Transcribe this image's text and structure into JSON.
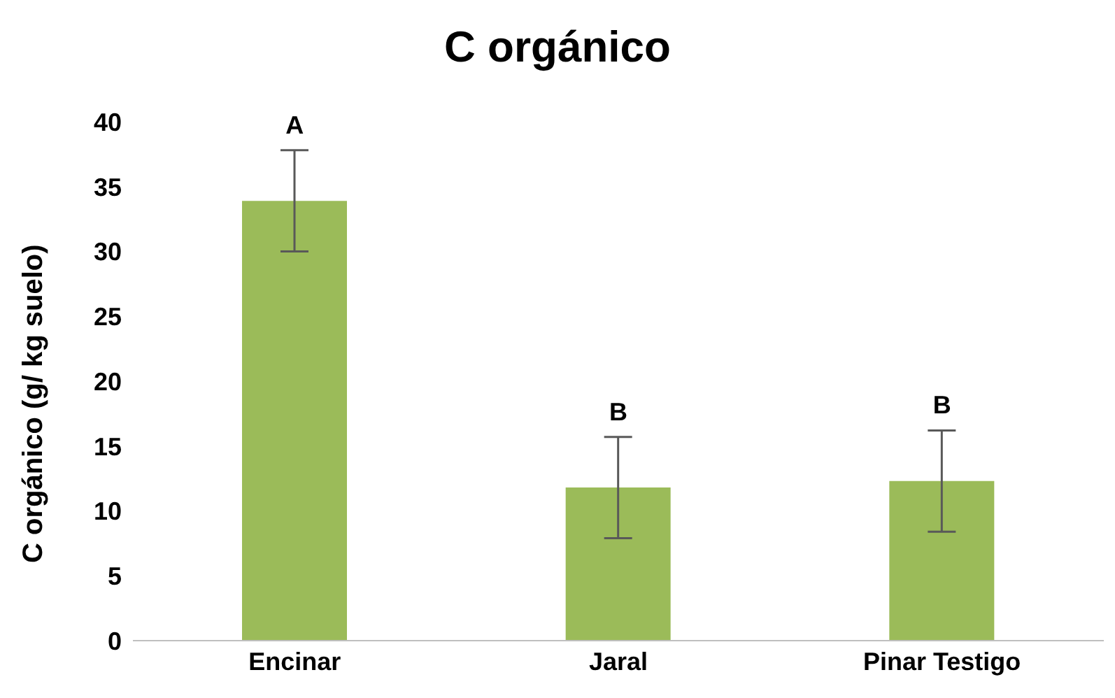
{
  "chart_data": {
    "type": "bar",
    "title": "C orgánico",
    "ylabel": "C orgánico (g/ kg suelo)",
    "categories": [
      "Encinar",
      "Jaral",
      "Pinar Testigo"
    ],
    "values": [
      33.9,
      11.8,
      12.3
    ],
    "errors": [
      3.9,
      3.9,
      3.9
    ],
    "color": "#9bbb59",
    "ylim": [
      0,
      40
    ],
    "yticks": [
      0,
      5,
      10,
      15,
      20,
      25,
      30,
      35,
      40
    ],
    "grid": false,
    "legend": false,
    "annotations": [
      {
        "text": "A",
        "x": "Encinar",
        "y": 37.8
      },
      {
        "text": "B",
        "x": "Jaral",
        "y": 15.7
      },
      {
        "text": "B",
        "x": "Pinar Testigo",
        "y": 16.2
      }
    ]
  }
}
